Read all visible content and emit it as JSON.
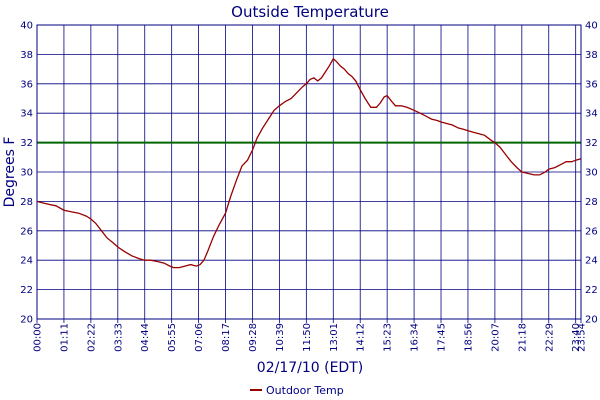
{
  "chart_data": {
    "type": "line",
    "title": "Outside Temperature",
    "xlabel": "02/17/10 (EDT)",
    "ylabel": "Degrees F",
    "ylim": [
      20,
      40
    ],
    "y_ticks": [
      20,
      22,
      24,
      26,
      28,
      30,
      32,
      34,
      36,
      38,
      40
    ],
    "x_ticks": [
      "00:00",
      "01:11",
      "02:22",
      "03:33",
      "04:44",
      "05:55",
      "07:06",
      "08:17",
      "09:28",
      "10:39",
      "11:50",
      "13:01",
      "14:12",
      "15:23",
      "16:34",
      "17:45",
      "18:56",
      "20:07",
      "21:18",
      "22:29",
      "23:40",
      "23:54"
    ],
    "reference_line": {
      "value": 32,
      "color": "#006400"
    },
    "grid": true,
    "legend_position": "bottom-center",
    "colors": {
      "series": "#990000",
      "grid": "#000080",
      "text": "#000080"
    },
    "series": [
      {
        "name": "Outdoor Temp",
        "x": [
          "00:00",
          "00:15",
          "00:30",
          "00:50",
          "01:11",
          "01:30",
          "01:50",
          "02:10",
          "02:22",
          "02:35",
          "02:50",
          "03:05",
          "03:20",
          "03:33",
          "03:50",
          "04:10",
          "04:30",
          "04:44",
          "05:00",
          "05:20",
          "05:35",
          "05:50",
          "06:00",
          "06:15",
          "06:30",
          "06:45",
          "07:00",
          "07:10",
          "07:20",
          "07:30",
          "07:45",
          "08:00",
          "08:17",
          "08:30",
          "08:45",
          "09:00",
          "09:15",
          "09:28",
          "09:40",
          "09:55",
          "10:10",
          "10:25",
          "10:39",
          "10:55",
          "11:10",
          "11:25",
          "11:40",
          "11:50",
          "12:00",
          "12:10",
          "12:20",
          "12:30",
          "12:40",
          "12:50",
          "13:01",
          "13:10",
          "13:20",
          "13:30",
          "13:40",
          "13:50",
          "14:00",
          "14:12",
          "14:25",
          "14:40",
          "14:55",
          "15:05",
          "15:15",
          "15:23",
          "15:35",
          "15:45",
          "16:00",
          "16:15",
          "16:34",
          "16:50",
          "17:05",
          "17:20",
          "17:35",
          "17:45",
          "18:00",
          "18:15",
          "18:30",
          "18:45",
          "18:56",
          "19:10",
          "19:25",
          "19:40",
          "19:55",
          "20:07",
          "20:20",
          "20:35",
          "20:50",
          "21:05",
          "21:18",
          "21:35",
          "21:50",
          "22:05",
          "22:20",
          "22:29",
          "22:45",
          "23:00",
          "23:15",
          "23:30",
          "23:40",
          "23:54"
        ],
        "values": [
          28.0,
          27.9,
          27.8,
          27.7,
          27.4,
          27.3,
          27.2,
          27.0,
          26.8,
          26.5,
          26.0,
          25.5,
          25.2,
          24.9,
          24.6,
          24.3,
          24.1,
          24.0,
          24.0,
          23.9,
          23.8,
          23.6,
          23.5,
          23.5,
          23.6,
          23.7,
          23.6,
          23.7,
          24.0,
          24.6,
          25.6,
          26.4,
          27.2,
          28.3,
          29.4,
          30.4,
          30.8,
          31.5,
          32.3,
          33.0,
          33.6,
          34.2,
          34.5,
          34.8,
          35.0,
          35.4,
          35.8,
          36.0,
          36.3,
          36.4,
          36.2,
          36.4,
          36.8,
          37.2,
          37.7,
          37.5,
          37.2,
          37.0,
          36.7,
          36.5,
          36.2,
          35.6,
          35.0,
          34.4,
          34.4,
          34.7,
          35.1,
          35.2,
          34.8,
          34.5,
          34.5,
          34.4,
          34.2,
          34.0,
          33.8,
          33.6,
          33.5,
          33.4,
          33.3,
          33.2,
          33.0,
          32.9,
          32.8,
          32.7,
          32.6,
          32.5,
          32.2,
          32.0,
          31.7,
          31.2,
          30.7,
          30.3,
          30.0,
          29.9,
          29.8,
          29.8,
          30.0,
          30.2,
          30.3,
          30.5,
          30.7,
          30.7,
          30.8,
          30.9
        ]
      }
    ]
  }
}
